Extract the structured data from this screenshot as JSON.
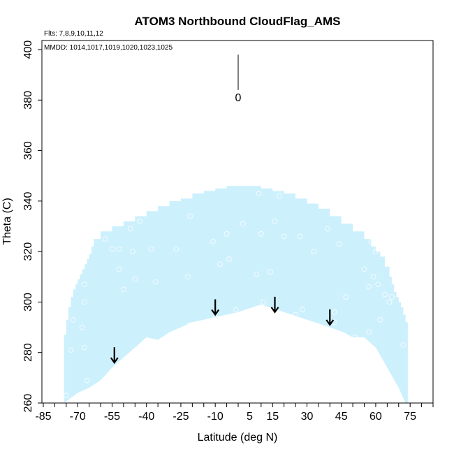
{
  "chart_data": {
    "type": "area",
    "title": "ATOM3 Northbound CloudFlag_AMS",
    "subtitle_flights": "Flts: 7,8,9,10,11,12",
    "subtitle_dates": "MMDD: 1014,1017,1019,1020,1023,1025",
    "xlabel": "Latitude (deg N)",
    "ylabel": "Theta (C)",
    "xlim": [
      -85,
      85
    ],
    "ylim": [
      260,
      400
    ],
    "xticks": [
      -85,
      -70,
      -55,
      -40,
      -25,
      -10,
      5,
      15,
      30,
      45,
      60,
      75
    ],
    "xtick_labels": [
      "-85",
      "-70",
      "-55",
      "-40",
      "-25",
      "-10",
      "5",
      "15",
      "30",
      "45",
      "60",
      "75"
    ],
    "xminor_step": 5,
    "yticks": [
      260,
      280,
      300,
      320,
      340,
      360,
      380,
      400
    ],
    "ytick_labels": [
      "260",
      "280",
      "300",
      "320",
      "340",
      "360",
      "380",
      "400"
    ],
    "fill_color": "#cdf0fd",
    "marker_label": "0",
    "marker_x": 0,
    "marker_y_range": [
      384,
      398
    ],
    "upper_boundary": {
      "lat": [
        -76,
        -76,
        -75,
        -74,
        -73,
        -72,
        -71,
        -70,
        -69,
        -68,
        -67,
        -66,
        -65,
        -64,
        -63,
        -60,
        -55,
        -50,
        -45,
        -40,
        -35,
        -30,
        -25,
        -20,
        -15,
        -10,
        -5,
        0,
        5,
        10,
        15,
        20,
        25,
        30,
        35,
        40,
        45,
        50,
        55,
        58,
        60,
        62,
        64,
        66,
        67,
        68,
        69,
        70,
        71,
        72,
        73,
        74
      ],
      "theta": [
        274,
        287,
        293,
        298,
        302,
        305,
        307,
        309,
        311,
        313,
        315,
        317,
        319,
        322,
        325,
        328,
        330,
        332,
        334,
        336,
        338,
        340,
        341,
        343,
        344,
        345,
        346,
        346,
        346,
        345,
        344,
        343,
        341,
        339,
        337,
        334,
        331,
        328,
        325,
        322,
        320,
        318,
        314,
        310,
        307,
        304,
        302,
        300,
        298,
        295,
        292,
        282
      ]
    },
    "lower_boundary": {
      "lat": [
        -76,
        -73,
        -70,
        -65,
        -60,
        -55,
        -50,
        -45,
        -40,
        -35,
        -30,
        -25,
        -20,
        -10,
        0,
        10,
        20,
        30,
        40,
        46,
        50,
        55,
        60,
        65,
        70,
        73,
        74
      ],
      "theta": [
        260,
        262,
        264,
        266,
        269,
        274,
        278,
        282,
        286,
        285,
        288,
        290,
        292,
        294,
        296,
        299,
        296,
        293,
        290,
        288,
        286,
        286,
        282,
        274,
        266,
        260,
        260
      ]
    },
    "tropopause_arrows": {
      "lat": [
        -54,
        -10,
        16,
        40
      ],
      "theta": [
        276,
        295,
        296,
        291
      ]
    },
    "samples": {
      "lat": [
        -75,
        -73,
        -72,
        -68,
        -67,
        -67,
        -67,
        -66,
        -58,
        -55,
        -52,
        -52,
        -50,
        -47,
        -46,
        -45,
        -43,
        -38,
        -36,
        -27,
        -27,
        -22,
        -21,
        -21,
        -11,
        -10,
        -8,
        -5,
        -4,
        -1,
        2,
        8,
        9,
        10,
        11,
        14,
        16,
        18,
        20,
        25,
        27,
        28,
        33,
        34,
        39,
        42,
        42,
        44,
        47,
        51,
        55,
        57,
        57,
        58,
        59,
        60,
        61,
        62,
        64,
        65,
        66,
        67,
        72
      ],
      "theta": [
        263,
        281,
        293,
        290,
        307,
        300,
        282,
        269,
        325,
        321,
        321,
        313,
        305,
        329,
        320,
        309,
        332,
        321,
        308,
        341,
        321,
        310,
        291,
        334,
        324,
        294,
        315,
        327,
        317,
        297,
        331,
        311,
        343,
        327,
        300,
        312,
        332,
        342,
        326,
        295,
        326,
        297,
        320,
        342,
        329,
        292,
        296,
        323,
        302,
        286,
        313,
        288,
        306,
        324,
        310,
        320,
        307,
        293,
        303,
        330,
        300,
        302,
        283
      ]
    }
  }
}
